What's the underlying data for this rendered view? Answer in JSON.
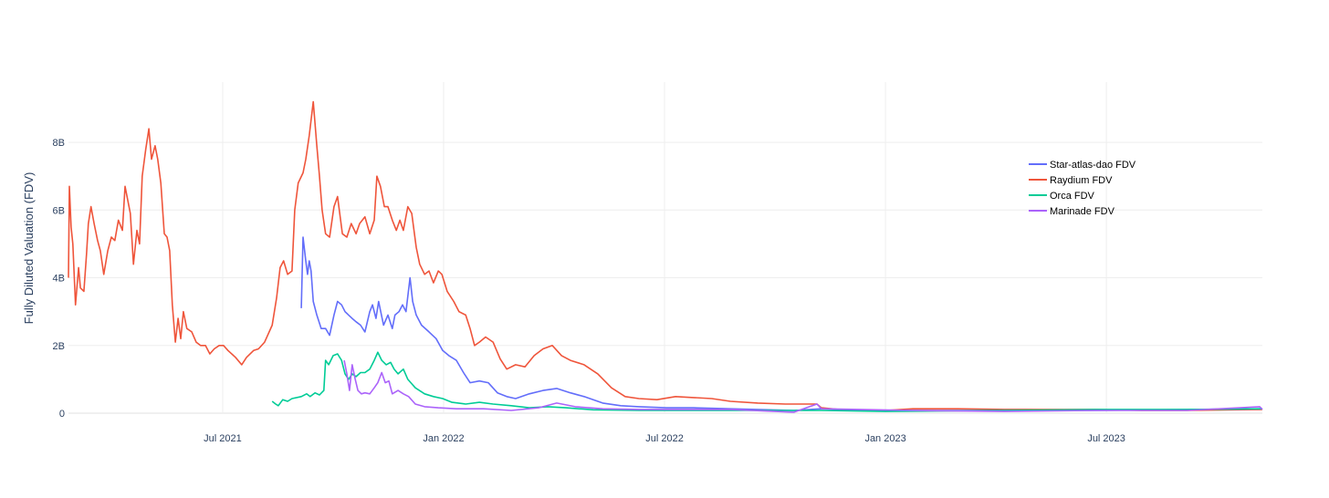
{
  "chart_data": {
    "type": "line",
    "title": "",
    "xlabel": "",
    "ylabel": "Fully Diluted Valuation (FDV)",
    "x_units": "decimal year",
    "xlim": [
      2021.151,
      2023.853
    ],
    "ylim": [
      0,
      9.78
    ],
    "y_units": "billions USD",
    "grid": true,
    "legend_position": "top-right",
    "x_ticks": [
      {
        "value": 2021.5,
        "label": "Jul 2021"
      },
      {
        "value": 2022.0,
        "label": "Jan 2022"
      },
      {
        "value": 2022.5,
        "label": "Jul 2022"
      },
      {
        "value": 2023.0,
        "label": "Jan 2023"
      },
      {
        "value": 2023.5,
        "label": "Jul 2023"
      }
    ],
    "y_ticks": [
      {
        "value": 0,
        "label": "0"
      },
      {
        "value": 2,
        "label": "2B"
      },
      {
        "value": 4,
        "label": "4B"
      },
      {
        "value": 6,
        "label": "6B"
      },
      {
        "value": 8,
        "label": "8B"
      }
    ],
    "series": [
      {
        "name": "Star-atlas-dao FDV",
        "color": "#636efa",
        "x": [
          2021.678,
          2021.682,
          2021.688,
          2021.692,
          2021.696,
          2021.7,
          2021.705,
          2021.713,
          2021.723,
          2021.733,
          2021.742,
          2021.752,
          2021.76,
          2021.769,
          2021.777,
          2021.785,
          2021.793,
          2021.802,
          2021.812,
          2021.822,
          2021.833,
          2021.839,
          2021.847,
          2021.853,
          2021.864,
          2021.874,
          2021.884,
          2021.89,
          2021.899,
          2021.907,
          2021.915,
          2021.924,
          2021.93,
          2021.938,
          2021.95,
          2021.967,
          2021.983,
          2021.998,
          2022.012,
          2022.029,
          2022.045,
          2022.06,
          2022.081,
          2022.101,
          2022.122,
          2022.143,
          2022.163,
          2022.194,
          2022.225,
          2022.256,
          2022.287,
          2022.318,
          2022.36,
          2022.401,
          2022.442,
          2022.504,
          2022.566,
          2022.649,
          2022.793,
          2022.855,
          2022.959,
          2023.062,
          2023.269,
          2023.475,
          2023.853
        ],
        "y": [
          3.1,
          5.2,
          4.5,
          4.1,
          4.5,
          4.2,
          3.3,
          2.9,
          2.5,
          2.5,
          2.3,
          2.9,
          3.3,
          3.2,
          3.0,
          2.9,
          2.8,
          2.7,
          2.6,
          2.4,
          3.0,
          3.2,
          2.8,
          3.3,
          2.6,
          2.9,
          2.5,
          2.9,
          3.0,
          3.2,
          3.0,
          4.0,
          3.3,
          2.9,
          2.6,
          2.4,
          2.2,
          1.85,
          1.7,
          1.56,
          1.2,
          0.9,
          0.95,
          0.9,
          0.6,
          0.49,
          0.43,
          0.57,
          0.67,
          0.73,
          0.6,
          0.49,
          0.3,
          0.22,
          0.19,
          0.16,
          0.16,
          0.13,
          0.08,
          0.13,
          0.08,
          0.08,
          0.08,
          0.08,
          0.13
        ]
      },
      {
        "name": "Raydium FDV",
        "color": "#EF553B",
        "x": [
          2021.151,
          2021.153,
          2021.157,
          2021.161,
          2021.167,
          2021.174,
          2021.178,
          2021.186,
          2021.192,
          2021.196,
          2021.202,
          2021.209,
          2021.217,
          2021.223,
          2021.231,
          2021.24,
          2021.248,
          2021.256,
          2021.264,
          2021.273,
          2021.279,
          2021.285,
          2021.291,
          2021.298,
          2021.306,
          2021.312,
          2021.318,
          2021.326,
          2021.333,
          2021.339,
          2021.347,
          2021.353,
          2021.36,
          2021.368,
          2021.374,
          2021.38,
          2021.386,
          2021.393,
          2021.399,
          2021.405,
          2021.411,
          2021.419,
          2021.43,
          2021.44,
          2021.45,
          2021.461,
          2021.471,
          2021.481,
          2021.492,
          2021.502,
          2021.512,
          2021.529,
          2021.543,
          2021.554,
          2021.57,
          2021.581,
          2021.595,
          2021.612,
          2021.622,
          2021.63,
          2021.638,
          2021.647,
          2021.657,
          2021.663,
          2021.671,
          2021.682,
          2021.688,
          2021.696,
          2021.705,
          2021.713,
          2021.719,
          2021.725,
          2021.733,
          2021.742,
          2021.752,
          2021.76,
          2021.771,
          2021.781,
          2021.791,
          2021.802,
          2021.81,
          2021.822,
          2021.833,
          2021.843,
          2021.849,
          2021.857,
          2021.866,
          2021.874,
          2021.884,
          2021.893,
          2021.901,
          2021.909,
          2021.919,
          2021.928,
          2021.938,
          2021.946,
          2021.957,
          2021.967,
          2021.977,
          2021.988,
          2021.996,
          2022.008,
          2022.023,
          2022.035,
          2022.05,
          2022.06,
          2022.07,
          2022.081,
          2022.095,
          2022.112,
          2022.128,
          2022.143,
          2022.163,
          2022.184,
          2022.205,
          2022.225,
          2022.246,
          2022.267,
          2022.287,
          2022.318,
          2022.349,
          2022.38,
          2022.411,
          2022.442,
          2022.483,
          2022.525,
          2022.566,
          2022.607,
          2022.649,
          2022.711,
          2022.773,
          2022.845,
          2022.855,
          2022.917,
          2023.0,
          2023.062,
          2023.165,
          2023.269,
          2023.372,
          2023.475,
          2023.579,
          2023.682,
          2023.853
        ],
        "y": [
          4.0,
          6.7,
          5.5,
          5.0,
          3.2,
          4.3,
          3.7,
          3.6,
          4.7,
          5.6,
          6.1,
          5.6,
          5.1,
          4.8,
          4.1,
          4.8,
          5.2,
          5.1,
          5.7,
          5.4,
          6.7,
          6.3,
          5.9,
          4.4,
          5.4,
          5.0,
          7.0,
          7.8,
          8.4,
          7.5,
          7.9,
          7.5,
          6.8,
          5.3,
          5.2,
          4.8,
          3.2,
          2.1,
          2.8,
          2.2,
          3.0,
          2.5,
          2.4,
          2.1,
          2.0,
          2.0,
          1.75,
          1.9,
          2.0,
          2.0,
          1.85,
          1.65,
          1.43,
          1.65,
          1.85,
          1.9,
          2.1,
          2.6,
          3.4,
          4.3,
          4.5,
          4.1,
          4.2,
          6.0,
          6.8,
          7.1,
          7.5,
          8.2,
          9.2,
          7.9,
          7.0,
          6.0,
          5.3,
          5.2,
          6.1,
          6.4,
          5.3,
          5.2,
          5.6,
          5.3,
          5.6,
          5.8,
          5.3,
          5.7,
          7.0,
          6.7,
          6.1,
          6.1,
          5.7,
          5.4,
          5.7,
          5.4,
          6.1,
          5.9,
          4.9,
          4.4,
          4.1,
          4.2,
          3.85,
          4.2,
          4.1,
          3.6,
          3.3,
          3.0,
          2.9,
          2.5,
          2.0,
          2.1,
          2.25,
          2.1,
          1.6,
          1.3,
          1.43,
          1.37,
          1.7,
          1.9,
          2.0,
          1.7,
          1.56,
          1.43,
          1.16,
          0.75,
          0.49,
          0.43,
          0.4,
          0.49,
          0.46,
          0.43,
          0.35,
          0.3,
          0.27,
          0.27,
          0.16,
          0.08,
          0.08,
          0.13,
          0.13,
          0.11,
          0.11,
          0.11,
          0.08,
          0.08,
          0.11
        ]
      },
      {
        "name": "Orca FDV",
        "color": "#00cc96",
        "x": [
          2021.612,
          2021.62,
          2021.626,
          2021.636,
          2021.647,
          2021.657,
          2021.678,
          2021.69,
          2021.698,
          2021.709,
          2021.719,
          2021.729,
          2021.733,
          2021.74,
          2021.75,
          2021.76,
          2021.769,
          2021.777,
          2021.785,
          2021.793,
          2021.802,
          2021.812,
          2021.822,
          2021.833,
          2021.843,
          2021.851,
          2021.86,
          2021.87,
          2021.88,
          2021.888,
          2021.897,
          2021.909,
          2021.919,
          2021.936,
          2021.957,
          2021.977,
          2021.998,
          2022.019,
          2022.05,
          2022.081,
          2022.112,
          2022.153,
          2022.194,
          2022.236,
          2022.277,
          2022.339,
          2022.442,
          2022.649,
          2022.855,
          2023.0,
          2023.269,
          2023.475,
          2023.682,
          2023.853
        ],
        "y": [
          0.35,
          0.27,
          0.22,
          0.4,
          0.35,
          0.43,
          0.49,
          0.57,
          0.49,
          0.6,
          0.54,
          0.67,
          1.56,
          1.43,
          1.7,
          1.75,
          1.56,
          1.16,
          1.0,
          1.16,
          1.08,
          1.2,
          1.2,
          1.3,
          1.56,
          1.8,
          1.56,
          1.43,
          1.5,
          1.3,
          1.16,
          1.3,
          1.0,
          0.75,
          0.57,
          0.49,
          0.43,
          0.32,
          0.27,
          0.32,
          0.27,
          0.22,
          0.16,
          0.19,
          0.16,
          0.1,
          0.08,
          0.08,
          0.08,
          0.05,
          0.08,
          0.11,
          0.11,
          0.13
        ]
      },
      {
        "name": "Marinade FDV",
        "color": "#ab63fa",
        "x": [
          2021.775,
          2021.781,
          2021.787,
          2021.793,
          2021.8,
          2021.806,
          2021.814,
          2021.822,
          2021.833,
          2021.843,
          2021.851,
          2021.86,
          2021.868,
          2021.876,
          2021.884,
          2021.897,
          2021.909,
          2021.921,
          2021.936,
          2021.957,
          2021.988,
          2022.029,
          2022.091,
          2022.153,
          2022.215,
          2022.256,
          2022.298,
          2022.36,
          2022.442,
          2022.649,
          2022.793,
          2022.845,
          2022.855,
          2023.062,
          2023.269,
          2023.475,
          2023.682,
          2023.847,
          2023.853
        ],
        "y": [
          1.56,
          1.16,
          0.67,
          1.43,
          1.0,
          0.67,
          0.57,
          0.6,
          0.57,
          0.75,
          0.9,
          1.2,
          0.9,
          0.95,
          0.57,
          0.67,
          0.57,
          0.49,
          0.27,
          0.19,
          0.16,
          0.13,
          0.13,
          0.08,
          0.16,
          0.3,
          0.19,
          0.13,
          0.11,
          0.11,
          0.03,
          0.27,
          0.13,
          0.08,
          0.05,
          0.08,
          0.08,
          0.19,
          0.11
        ]
      }
    ]
  }
}
